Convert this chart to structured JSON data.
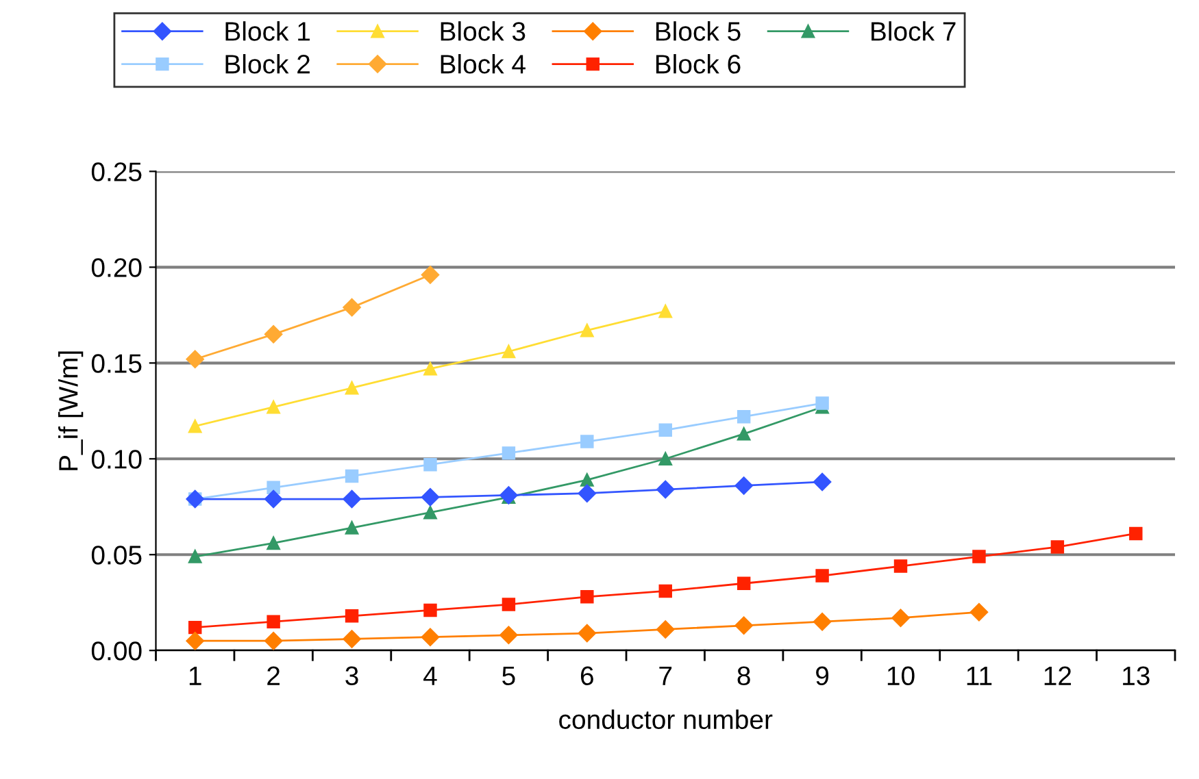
{
  "chart_data": {
    "type": "line",
    "xlabel": "conductor number",
    "ylabel": "P_if [W/m]",
    "categories": [
      "1",
      "2",
      "3",
      "4",
      "5",
      "6",
      "7",
      "8",
      "9",
      "10",
      "11",
      "12",
      "13"
    ],
    "ylim": [
      0,
      0.25
    ],
    "yticks": [
      {
        "value": 0,
        "label": "0.00"
      },
      {
        "value": 0.05,
        "label": "0.05"
      },
      {
        "value": 0.1,
        "label": "0.10"
      },
      {
        "value": 0.15,
        "label": "0.15"
      },
      {
        "value": 0.2,
        "label": "0.20"
      },
      {
        "value": 0.25,
        "label": "0.25"
      }
    ],
    "grid": "y",
    "legend": "top",
    "series": [
      {
        "name": "Block 1",
        "color": "#3355ff",
        "marker": "diamond",
        "values": [
          0.079,
          0.079,
          0.079,
          0.08,
          0.081,
          0.082,
          0.084,
          0.086,
          0.088,
          null,
          null,
          null,
          null
        ]
      },
      {
        "name": "Block 2",
        "color": "#99ccff",
        "marker": "square",
        "values": [
          0.079,
          0.085,
          0.091,
          0.097,
          0.103,
          0.109,
          0.115,
          0.122,
          0.129,
          null,
          null,
          null,
          null
        ]
      },
      {
        "name": "Block 3",
        "color": "#ffdd33",
        "marker": "triangle",
        "values": [
          0.117,
          0.127,
          0.137,
          0.147,
          0.156,
          0.167,
          0.177,
          null,
          null,
          null,
          null,
          null,
          null
        ]
      },
      {
        "name": "Block 4",
        "color": "#ffaa33",
        "marker": "diamond",
        "values": [
          0.152,
          0.165,
          0.179,
          0.196,
          null,
          null,
          null,
          null,
          null,
          null,
          null,
          null,
          null
        ]
      },
      {
        "name": "Block 5",
        "color": "#ff7f00",
        "marker": "diamond",
        "values": [
          0.005,
          0.005,
          0.006,
          0.007,
          0.008,
          0.009,
          0.011,
          0.013,
          0.015,
          0.017,
          0.02,
          null,
          null
        ]
      },
      {
        "name": "Block 6",
        "color": "#ff2200",
        "marker": "square",
        "values": [
          0.012,
          0.015,
          0.018,
          0.021,
          0.024,
          0.028,
          0.031,
          0.035,
          0.039,
          0.044,
          0.049,
          0.054,
          0.061
        ]
      },
      {
        "name": "Block 7",
        "color": "#339966",
        "marker": "triangle",
        "values": [
          0.049,
          0.056,
          0.064,
          0.072,
          0.08,
          0.089,
          0.1,
          0.113,
          0.127,
          null,
          null,
          null,
          null
        ]
      }
    ]
  }
}
